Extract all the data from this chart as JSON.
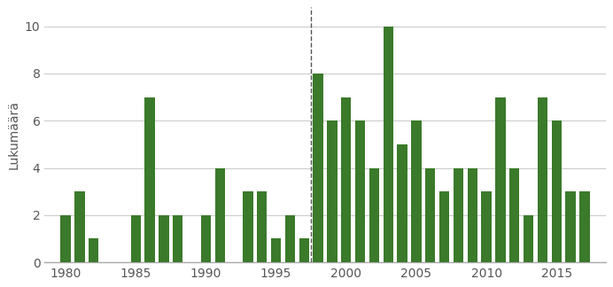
{
  "years": [
    1980,
    1981,
    1982,
    1983,
    1984,
    1985,
    1986,
    1987,
    1988,
    1989,
    1990,
    1991,
    1992,
    1993,
    1994,
    1995,
    1996,
    1997,
    1998,
    1999,
    2000,
    2001,
    2002,
    2003,
    2004,
    2005,
    2006,
    2007,
    2008,
    2009,
    2010,
    2011,
    2012,
    2013,
    2014,
    2015,
    2016,
    2017
  ],
  "values": [
    2,
    3,
    1,
    0,
    0,
    2,
    7,
    2,
    2,
    0,
    2,
    4,
    0,
    3,
    3,
    1,
    2,
    1,
    8,
    6,
    7,
    6,
    4,
    10,
    5,
    6,
    4,
    3,
    4,
    4,
    3,
    7,
    4,
    2,
    7,
    6,
    3,
    3
  ],
  "bar_color": "#3a7a2a",
  "ylabel": "Lukumäärä",
  "xlim": [
    1978.5,
    2018.5
  ],
  "ylim": [
    0,
    10.8
  ],
  "yticks": [
    0,
    2,
    4,
    6,
    8,
    10
  ],
  "xticks": [
    1980,
    1985,
    1990,
    1995,
    2000,
    2005,
    2010,
    2015
  ],
  "dashed_line_x": 1997.5,
  "bar_width": 0.72,
  "grid_color": "#cccccc",
  "background_color": "#ffffff"
}
